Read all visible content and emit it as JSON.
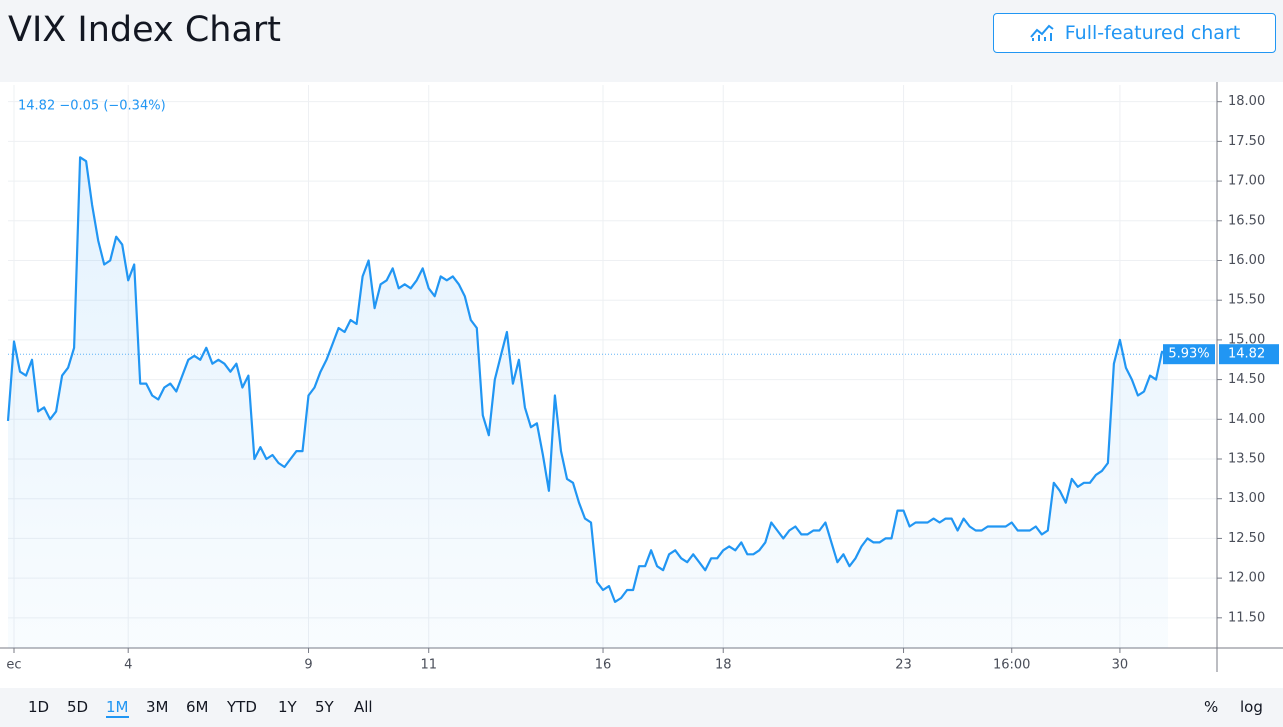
{
  "header": {
    "title": "VIX Index Chart",
    "button": "Full-featured chart"
  },
  "toolbar": {
    "ranges": [
      "1D",
      "5D",
      "1M",
      "3M",
      "6M",
      "YTD",
      "1Y",
      "5Y",
      "All"
    ],
    "selected": 2,
    "options": [
      "%",
      "log"
    ]
  },
  "chart_data": {
    "type": "line",
    "quote": "14.82 −0.05 (−0.34%)",
    "price_tag": "14.82",
    "percent_tag": "5.93%",
    "color": "#2196f3",
    "grid": true,
    "categories": [
      null,
      "ec",
      null,
      null,
      null,
      null,
      null,
      null,
      null,
      null,
      null,
      null,
      null,
      null,
      null,
      null,
      null,
      null,
      null,
      null,
      "4",
      null,
      null,
      null,
      null,
      null,
      null,
      null,
      null,
      null,
      null,
      null,
      null,
      null,
      null,
      null,
      null,
      null,
      null,
      null,
      null,
      null,
      null,
      null,
      null,
      null,
      null,
      null,
      null,
      null,
      "9",
      null,
      null,
      null,
      null,
      null,
      null,
      null,
      null,
      null,
      null,
      null,
      null,
      null,
      null,
      null,
      null,
      null,
      null,
      null,
      "11",
      null,
      null,
      null,
      null,
      null,
      null,
      null,
      null,
      null,
      null,
      null,
      null,
      null,
      null,
      null,
      null,
      null,
      null,
      null,
      null,
      null,
      null,
      null,
      null,
      null,
      null,
      null,
      null,
      "16",
      null,
      null,
      null,
      null,
      null,
      null,
      null,
      null,
      null,
      null,
      null,
      null,
      null,
      null,
      null,
      null,
      null,
      null,
      null,
      "18",
      null,
      null,
      null,
      null,
      null,
      null,
      null,
      null,
      null,
      null,
      null,
      null,
      null,
      null,
      null,
      null,
      null,
      null,
      null,
      null,
      null,
      null,
      null,
      null,
      null,
      null,
      null,
      null,
      null,
      "23",
      null,
      null,
      null,
      null,
      null,
      null,
      null,
      null,
      null,
      null,
      null,
      null,
      null,
      null,
      null,
      null,
      null,
      "16:00",
      null,
      null,
      null,
      null,
      null,
      null,
      null,
      null,
      null,
      null,
      null,
      null,
      null,
      null,
      null,
      null,
      null,
      "30",
      null,
      null,
      null,
      null,
      null,
      null,
      null,
      null
    ],
    "values": [
      13.98,
      14.98,
      14.6,
      14.55,
      14.75,
      14.1,
      14.15,
      14.0,
      14.1,
      14.55,
      14.65,
      14.9,
      17.3,
      17.25,
      16.7,
      16.25,
      15.95,
      16.0,
      16.3,
      16.2,
      15.75,
      15.95,
      14.45,
      14.45,
      14.3,
      14.25,
      14.4,
      14.45,
      14.35,
      14.55,
      14.75,
      14.8,
      14.75,
      14.9,
      14.7,
      14.75,
      14.7,
      14.6,
      14.7,
      14.4,
      14.55,
      13.5,
      13.65,
      13.5,
      13.55,
      13.45,
      13.4,
      13.5,
      13.6,
      13.6,
      14.3,
      14.4,
      14.6,
      14.75,
      14.95,
      15.15,
      15.1,
      15.25,
      15.2,
      15.8,
      16.0,
      15.4,
      15.7,
      15.75,
      15.9,
      15.65,
      15.7,
      15.65,
      15.75,
      15.9,
      15.65,
      15.55,
      15.8,
      15.75,
      15.8,
      15.7,
      15.55,
      15.25,
      15.15,
      14.05,
      13.8,
      14.5,
      14.8,
      15.1,
      14.45,
      14.75,
      14.15,
      13.9,
      13.95,
      13.55,
      13.1,
      14.3,
      13.6,
      13.25,
      13.2,
      12.95,
      12.75,
      12.7,
      11.95,
      11.85,
      11.9,
      11.7,
      11.75,
      11.85,
      11.85,
      12.15,
      12.15,
      12.35,
      12.15,
      12.1,
      12.3,
      12.35,
      12.25,
      12.2,
      12.3,
      12.2,
      12.1,
      12.25,
      12.25,
      12.35,
      12.4,
      12.35,
      12.45,
      12.3,
      12.3,
      12.35,
      12.45,
      12.7,
      12.6,
      12.5,
      12.6,
      12.65,
      12.55,
      12.55,
      12.6,
      12.6,
      12.7,
      12.45,
      12.2,
      12.3,
      12.15,
      12.25,
      12.4,
      12.5,
      12.45,
      12.45,
      12.5,
      12.5,
      12.85,
      12.85,
      12.65,
      12.7,
      12.7,
      12.7,
      12.75,
      12.7,
      12.75,
      12.75,
      12.6,
      12.75,
      12.65,
      12.6,
      12.6,
      12.65,
      12.65,
      12.65,
      12.65,
      12.7,
      12.6,
      12.6,
      12.6,
      12.65,
      12.55,
      12.6,
      13.2,
      13.1,
      12.95,
      13.25,
      13.15,
      13.2,
      13.2,
      13.3,
      13.35,
      13.45,
      14.7,
      15.0,
      14.65,
      14.5,
      14.3,
      14.35,
      14.55,
      14.5,
      14.85,
      14.82
    ],
    "ylim": [
      11.12,
      18.21
    ],
    "yticks": [
      {
        "value": 11.5,
        "label": "11.50"
      },
      {
        "value": 12,
        "label": "12.00"
      },
      {
        "value": 12.5,
        "label": "12.50"
      },
      {
        "value": 13,
        "label": "13.00"
      },
      {
        "value": 13.5,
        "label": "13.50"
      },
      {
        "value": 14,
        "label": "14.00"
      },
      {
        "value": 14.5,
        "label": "14.50"
      },
      {
        "value": 15,
        "label": "15.00"
      },
      {
        "value": 15.5,
        "label": "15.50"
      },
      {
        "value": 16,
        "label": "16.00"
      },
      {
        "value": 16.5,
        "label": "16.50"
      },
      {
        "value": 17,
        "label": "17.00"
      },
      {
        "value": 17.5,
        "label": "17.50"
      },
      {
        "value": 18,
        "label": "18.00"
      }
    ]
  }
}
